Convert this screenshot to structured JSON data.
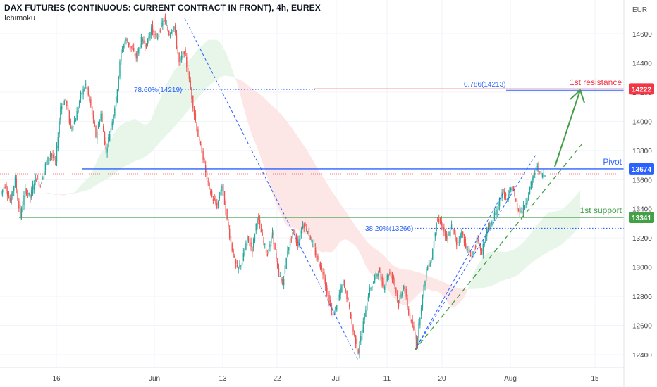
{
  "header": {
    "title": "DAX FUTURES (CONTINUOUS: CURRENT CONTRACT IN FRONT), 4h, EUREX",
    "indicator": "Ichimoku"
  },
  "colors": {
    "up": "#26a69a",
    "down": "#ef5350",
    "resistance": "#f23645",
    "pivot": "#2962ff",
    "support": "#43a047",
    "fib": "#2962ff",
    "arrow": "#43a047",
    "cloud_bull": "#e8f5e9",
    "cloud_bear": "#fde6e6",
    "grid": "#f0f3fa",
    "text": "#131722"
  },
  "chart_data": {
    "type": "candlestick",
    "title": "DAX FUTURES (CONTINUOUS: CURRENT CONTRACT IN FRONT), 4h, EUREX",
    "currency": "EUR",
    "y_ticks": [
      12400,
      12600,
      12800,
      13000,
      13200,
      13400,
      13600,
      13800,
      14000,
      14200,
      14400,
      14600
    ],
    "ylim": [
      12300,
      14800
    ],
    "x_ticks": [
      "16",
      "Jun",
      "13",
      "22",
      "Jul",
      "11",
      "20",
      "Aug",
      "15"
    ],
    "price_path": [
      [
        0,
        13500
      ],
      [
        4,
        13560
      ],
      [
        8,
        13450
      ],
      [
        12,
        13600
      ],
      [
        16,
        13340
      ],
      [
        20,
        13530
      ],
      [
        24,
        13480
      ],
      [
        28,
        13620
      ],
      [
        32,
        13560
      ],
      [
        36,
        13700
      ],
      [
        40,
        13780
      ],
      [
        44,
        13720
      ],
      [
        48,
        14100
      ],
      [
        52,
        14150
      ],
      [
        56,
        13950
      ],
      [
        60,
        14020
      ],
      [
        64,
        14180
      ],
      [
        68,
        14250
      ],
      [
        72,
        14100
      ],
      [
        76,
        13900
      ],
      [
        80,
        14050
      ],
      [
        84,
        13800
      ],
      [
        88,
        13960
      ],
      [
        92,
        14150
      ],
      [
        96,
        14480
      ],
      [
        100,
        14560
      ],
      [
        104,
        14500
      ],
      [
        108,
        14440
      ],
      [
        112,
        14560
      ],
      [
        116,
        14520
      ],
      [
        120,
        14640
      ],
      [
        124,
        14560
      ],
      [
        128,
        14660
      ],
      [
        130,
        14700
      ],
      [
        134,
        14600
      ],
      [
        138,
        14650
      ],
      [
        142,
        14400
      ],
      [
        146,
        14480
      ],
      [
        150,
        14280
      ],
      [
        154,
        14050
      ],
      [
        158,
        13850
      ],
      [
        160,
        13800
      ],
      [
        164,
        13600
      ],
      [
        168,
        13480
      ],
      [
        172,
        13420
      ],
      [
        176,
        13560
      ],
      [
        180,
        13320
      ],
      [
        184,
        13120
      ],
      [
        188,
        12980
      ],
      [
        192,
        13040
      ],
      [
        196,
        13200
      ],
      [
        200,
        13120
      ],
      [
        204,
        13350
      ],
      [
        208,
        13200
      ],
      [
        212,
        13080
      ],
      [
        216,
        13240
      ],
      [
        220,
        12980
      ],
      [
        224,
        12880
      ],
      [
        228,
        13120
      ],
      [
        232,
        13240
      ],
      [
        236,
        13160
      ],
      [
        240,
        13300
      ],
      [
        244,
        13250
      ],
      [
        248,
        13150
      ],
      [
        252,
        13040
      ],
      [
        256,
        12960
      ],
      [
        260,
        12800
      ],
      [
        264,
        12660
      ],
      [
        268,
        12780
      ],
      [
        272,
        12900
      ],
      [
        276,
        12760
      ],
      [
        280,
        12560
      ],
      [
        284,
        12420
      ],
      [
        288,
        12620
      ],
      [
        292,
        12820
      ],
      [
        296,
        12900
      ],
      [
        300,
        12980
      ],
      [
        304,
        12860
      ],
      [
        308,
        12960
      ],
      [
        312,
        12920
      ],
      [
        316,
        12740
      ],
      [
        320,
        12880
      ],
      [
        324,
        12680
      ],
      [
        328,
        12560
      ],
      [
        330,
        12460
      ],
      [
        334,
        12740
      ],
      [
        338,
        12980
      ],
      [
        342,
        13060
      ],
      [
        346,
        13320
      ],
      [
        350,
        13300
      ],
      [
        354,
        13180
      ],
      [
        358,
        13280
      ],
      [
        362,
        13160
      ],
      [
        366,
        13240
      ],
      [
        370,
        13120
      ],
      [
        374,
        13080
      ],
      [
        378,
        13180
      ],
      [
        382,
        13100
      ],
      [
        386,
        13260
      ],
      [
        390,
        13300
      ],
      [
        394,
        13400
      ],
      [
        398,
        13520
      ],
      [
        402,
        13460
      ],
      [
        406,
        13560
      ],
      [
        410,
        13400
      ],
      [
        414,
        13380
      ],
      [
        418,
        13480
      ],
      [
        422,
        13600
      ],
      [
        426,
        13700
      ],
      [
        428,
        13640
      ],
      [
        432,
        13630
      ]
    ],
    "levels": [
      {
        "name": "1st resistance",
        "value": 14222,
        "label": "14222"
      },
      {
        "name": "Pivot",
        "value": 13674,
        "label": "13674"
      },
      {
        "name": "1st support",
        "value": 13341,
        "label": "13341"
      }
    ],
    "fib_labels": [
      {
        "text": "78.60%(14219)",
        "value": 14219
      },
      {
        "text": "0.786(14213)",
        "value": 14213
      },
      {
        "text": "38.20%(13266)",
        "value": 13266
      }
    ],
    "annotations": [
      "1st resistance",
      "Pivot",
      "1st support"
    ]
  }
}
